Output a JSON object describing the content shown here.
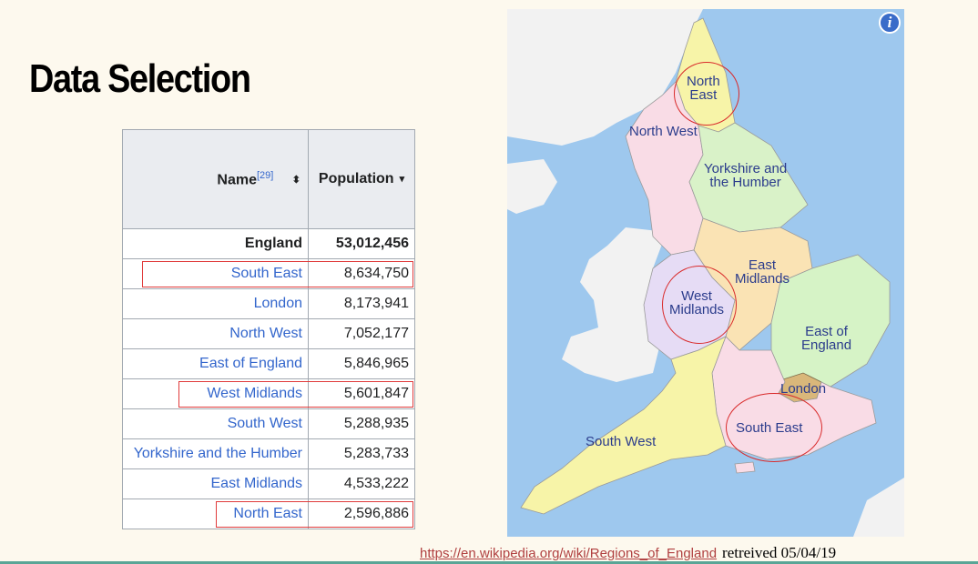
{
  "slide": {
    "title": "Data Selection"
  },
  "table": {
    "name_header": "Name",
    "name_ref": "[29]",
    "sort_both_icon": "⬍",
    "population_header": "Population",
    "sort_down_icon": "▾",
    "rows": [
      {
        "name": "England",
        "population": "53,012,456"
      },
      {
        "name": "South East",
        "population": "8,634,750"
      },
      {
        "name": "London",
        "population": "8,173,941"
      },
      {
        "name": "North West",
        "population": "7,052,177"
      },
      {
        "name": "East of England",
        "population": "5,846,965"
      },
      {
        "name": "West Midlands",
        "population": "5,601,847"
      },
      {
        "name": "South West",
        "population": "5,288,935"
      },
      {
        "name": "Yorkshire and the Humber",
        "population": "5,283,733"
      },
      {
        "name": "East Midlands",
        "population": "4,533,222"
      },
      {
        "name": "North East",
        "population": "2,596,886"
      }
    ]
  },
  "map": {
    "info_icon": "i",
    "labels": {
      "north_east_1": "North",
      "north_east_2": "East",
      "north_west": "North West",
      "yorkshire_1": "Yorkshire and",
      "yorkshire_2": "the Humber",
      "east_midlands_1": "East",
      "east_midlands_2": "Midlands",
      "west_midlands_1": "West",
      "west_midlands_2": "Midlands",
      "east_england_1": "East of",
      "east_england_2": "England",
      "london": "London",
      "south_west": "South West",
      "south_east": "South East"
    },
    "colors": {
      "sea": "#9ec8ee",
      "land_other": "#f2f2f2",
      "north_east": "#f7f4a8",
      "north_west": "#f9dce6",
      "yorkshire": "#d9f2c8",
      "east_midlands": "#fae3b4",
      "west_midlands": "#e6dcf5",
      "east_england": "#d6f3c6",
      "london": "#d9b77a",
      "south_east": "#f9dce6",
      "south_west": "#f7f4a8",
      "highlight": "#d92a2a"
    }
  },
  "source": {
    "url": "https://en.wikipedia.org/wiki/Regions_of_England",
    "retrieved": "retreived 05/04/19"
  }
}
